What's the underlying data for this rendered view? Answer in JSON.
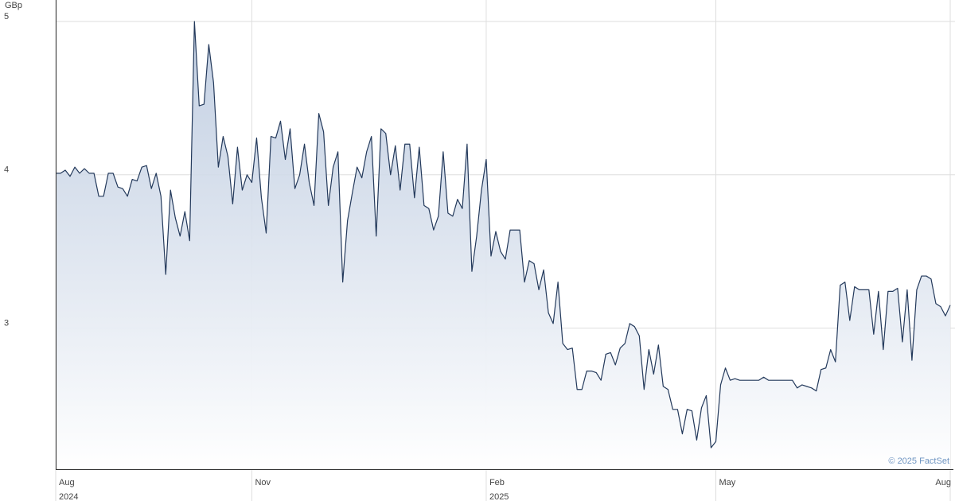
{
  "chart_data": {
    "type": "area",
    "unit_label": "GBp",
    "credit": "© 2025 FactSet",
    "color": "#23395b",
    "fill_color": "#b9c8de",
    "grid": true,
    "ylim": [
      2.08,
      5.14
    ],
    "yticks": [
      3,
      4,
      5
    ],
    "categories": [
      "Aug",
      null,
      null,
      null,
      null,
      null,
      null,
      null,
      null,
      null,
      null,
      null,
      null,
      null,
      null,
      null,
      null,
      null,
      null,
      null,
      null,
      null,
      null,
      null,
      null,
      null,
      null,
      null,
      null,
      null,
      null,
      null,
      null,
      null,
      null,
      null,
      null,
      null,
      null,
      null,
      null,
      "Nov",
      null,
      null,
      null,
      null,
      null,
      null,
      null,
      null,
      null,
      null,
      null,
      null,
      null,
      null,
      null,
      null,
      null,
      null,
      null,
      null,
      null,
      null,
      null,
      null,
      null,
      null,
      null,
      null,
      null,
      null,
      null,
      null,
      null,
      null,
      null,
      null,
      null,
      null,
      null,
      null,
      null,
      null,
      null,
      null,
      null,
      null,
      null,
      null,
      "Feb",
      null,
      null,
      null,
      null,
      null,
      null,
      null,
      null,
      null,
      null,
      null,
      null,
      null,
      null,
      null,
      null,
      null,
      null,
      null,
      null,
      null,
      null,
      null,
      null,
      null,
      null,
      null,
      null,
      null,
      null,
      null,
      null,
      null,
      null,
      null,
      null,
      null,
      null,
      null,
      null,
      null,
      null,
      null,
      null,
      null,
      null,
      null,
      "May",
      null,
      null,
      null,
      null,
      null,
      null,
      null,
      null,
      null,
      null,
      null,
      null,
      null,
      null,
      null,
      null,
      null,
      null,
      null,
      null,
      null,
      null,
      null,
      null,
      null,
      null,
      null,
      null,
      null,
      null,
      null,
      null,
      null,
      null,
      null,
      null,
      null,
      null,
      null,
      null,
      null,
      null,
      null,
      null,
      null,
      null,
      null,
      null,
      "Aug"
    ],
    "category_years": [
      "2024",
      null,
      null,
      null,
      null,
      null,
      null,
      null,
      null,
      null,
      null,
      null,
      null,
      null,
      null,
      null,
      null,
      null,
      null,
      null,
      null,
      null,
      null,
      null,
      null,
      null,
      null,
      null,
      null,
      null,
      null,
      null,
      null,
      null,
      null,
      null,
      null,
      null,
      null,
      null,
      null,
      null,
      null,
      null,
      null,
      null,
      null,
      null,
      null,
      null,
      null,
      null,
      null,
      null,
      null,
      null,
      null,
      null,
      null,
      null,
      null,
      null,
      null,
      null,
      null,
      null,
      null,
      null,
      null,
      null,
      null,
      null,
      null,
      null,
      null,
      null,
      null,
      null,
      null,
      null,
      null,
      null,
      null,
      null,
      null,
      null,
      null,
      null,
      null,
      null,
      "2025",
      null,
      null,
      null,
      null,
      null,
      null,
      null,
      null,
      null,
      null,
      null,
      null,
      null,
      null,
      null,
      null,
      null,
      null,
      null,
      null,
      null,
      null,
      null,
      null,
      null,
      null,
      null,
      null,
      null,
      null,
      null,
      null,
      null,
      null,
      null,
      null,
      null,
      null,
      null,
      null,
      null,
      null,
      null,
      null,
      null,
      null,
      null,
      null,
      null,
      null,
      null,
      null,
      null,
      null,
      null,
      null,
      null,
      null,
      null,
      null,
      null,
      null,
      null,
      null,
      null,
      null,
      null,
      null,
      null,
      null,
      null,
      null,
      null,
      null,
      null,
      null,
      null,
      null,
      null,
      null,
      null,
      null,
      null,
      null,
      null,
      null,
      null,
      null,
      null,
      null,
      null,
      null,
      null,
      null,
      null,
      null,
      null
    ],
    "values": [
      4.01,
      4.01,
      4.03,
      3.99,
      4.05,
      4.01,
      4.04,
      4.01,
      4.01,
      3.86,
      3.86,
      4.01,
      4.01,
      3.92,
      3.91,
      3.86,
      3.97,
      3.96,
      4.05,
      4.06,
      3.91,
      4.01,
      3.86,
      3.35,
      3.9,
      3.72,
      3.6,
      3.76,
      3.57,
      5.0,
      4.45,
      4.46,
      4.85,
      4.6,
      4.05,
      4.25,
      4.12,
      3.81,
      4.18,
      3.9,
      4.0,
      3.95,
      4.24,
      3.85,
      3.62,
      4.25,
      4.24,
      4.35,
      4.1,
      4.3,
      3.91,
      4.0,
      4.2,
      3.95,
      3.8,
      4.4,
      4.28,
      3.8,
      4.05,
      4.15,
      3.3,
      3.7,
      3.88,
      4.05,
      3.98,
      4.15,
      4.25,
      3.6,
      4.3,
      4.27,
      4.0,
      4.19,
      3.9,
      4.2,
      4.2,
      3.85,
      4.18,
      3.8,
      3.78,
      3.64,
      3.73,
      4.15,
      3.75,
      3.73,
      3.84,
      3.78,
      4.2,
      3.37,
      3.6,
      3.9,
      4.1,
      3.47,
      3.63,
      3.5,
      3.45,
      3.64,
      3.64,
      3.64,
      3.3,
      3.44,
      3.42,
      3.25,
      3.38,
      3.1,
      3.03,
      3.3,
      2.9,
      2.86,
      2.87,
      2.6,
      2.6,
      2.72,
      2.72,
      2.71,
      2.66,
      2.83,
      2.84,
      2.76,
      2.87,
      2.9,
      3.03,
      3.01,
      2.95,
      2.6,
      2.86,
      2.7,
      2.89,
      2.62,
      2.6,
      2.47,
      2.47,
      2.31,
      2.47,
      2.46,
      2.27,
      2.48,
      2.56,
      2.22,
      2.26,
      2.63,
      2.74,
      2.66,
      2.67,
      2.66,
      2.66,
      2.66,
      2.66,
      2.66,
      2.68,
      2.66,
      2.66,
      2.66,
      2.66,
      2.66,
      2.66,
      2.61,
      2.63,
      2.62,
      2.61,
      2.59,
      2.73,
      2.74,
      2.86,
      2.78,
      3.28,
      3.3,
      3.05,
      3.27,
      3.25,
      3.25,
      3.25,
      2.96,
      3.24,
      2.86,
      3.24,
      3.24,
      3.26,
      2.91,
      3.25,
      2.79,
      3.25,
      3.34,
      3.34,
      3.32,
      3.16,
      3.14,
      3.08,
      3.15
    ]
  }
}
